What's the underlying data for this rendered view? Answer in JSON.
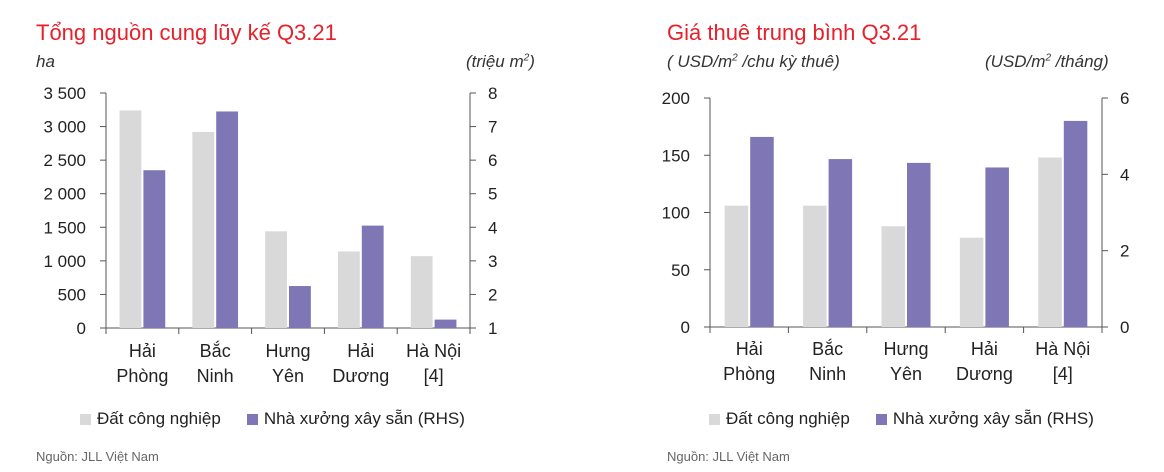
{
  "charts": [
    {
      "title": "Tổng nguồn cung lũy kế Q3.21",
      "unit_left": "ha",
      "unit_right_prefix": "(triệu m",
      "unit_right_sup": "2",
      "unit_right_suffix": ")",
      "legend": [
        "Đất công nghiệp",
        "Nhà xưởng xây sẵn (RHS)"
      ],
      "source": "Nguồn: JLL Việt Nam"
    },
    {
      "title": "Giá thuê trung bình Q3.21",
      "unit_left_prefix": "( USD/m",
      "unit_left_sup": "2",
      "unit_left_suffix": " /chu kỳ thuê)",
      "unit_right_prefix": "(USD/m",
      "unit_right_sup": "2",
      "unit_right_suffix": " /tháng)",
      "legend": [
        "Đất công nghiệp",
        "Nhà xưởng xây sẵn (RHS)"
      ],
      "source": "Nguồn: JLL Việt Nam"
    }
  ],
  "colors": {
    "title": "#e8202a",
    "land": "#d9d9d9",
    "factory": "#7f77b5",
    "axis": "#555555"
  },
  "chart_data": [
    {
      "type": "bar",
      "title": "Tổng nguồn cung lũy kế Q3.21",
      "categories": [
        [
          "Hải",
          "Phòng"
        ],
        [
          "Bắc",
          "Ninh"
        ],
        [
          "Hưng",
          "Yên"
        ],
        [
          "Hải",
          "Dương"
        ],
        [
          "Hà Nội",
          "[4]"
        ]
      ],
      "series": [
        {
          "name": "Đất công nghiệp",
          "axis": "left",
          "values": [
            3240,
            2920,
            1440,
            1140,
            1070
          ]
        },
        {
          "name": "Nhà xưởng xây sẵn (RHS)",
          "axis": "right",
          "values": [
            5.7,
            7.45,
            2.25,
            4.05,
            1.25
          ]
        }
      ],
      "ylabel": "ha",
      "y2label": "(triệu m2)",
      "ylim": [
        0,
        3500
      ],
      "y2lim": [
        1,
        8
      ],
      "yticks": [
        0,
        500,
        1000,
        1500,
        2000,
        2500,
        3000,
        3500
      ],
      "ytick_labels": [
        "0",
        "500",
        "1 000",
        "1 500",
        "2 000",
        "2 500",
        "3 000",
        "3 500"
      ],
      "y2ticks": [
        1,
        2,
        3,
        4,
        5,
        6,
        7,
        8
      ],
      "y2tick_labels": [
        "1",
        "2",
        "3",
        "4",
        "5",
        "6",
        "7",
        "8"
      ],
      "grid": false,
      "legend_position": "bottom"
    },
    {
      "type": "bar",
      "title": "Giá thuê trung bình Q3.21",
      "categories": [
        [
          "Hải",
          "Phòng"
        ],
        [
          "Bắc",
          "Ninh"
        ],
        [
          "Hưng",
          "Yên"
        ],
        [
          "Hải",
          "Dương"
        ],
        [
          "Hà Nội",
          "[4]"
        ]
      ],
      "series": [
        {
          "name": "Đất công nghiệp",
          "axis": "left",
          "values": [
            106,
            106,
            88,
            78,
            148
          ]
        },
        {
          "name": "Nhà xưởng xây sẵn (RHS)",
          "axis": "right",
          "values": [
            4.98,
            4.4,
            4.3,
            4.18,
            5.4
          ]
        }
      ],
      "ylabel": "( USD/m2 /chu kỳ thuê)",
      "y2label": "(USD/m2 /tháng)",
      "ylim": [
        0,
        200
      ],
      "y2lim": [
        0,
        6
      ],
      "yticks": [
        0,
        50,
        100,
        150,
        200
      ],
      "ytick_labels": [
        "0",
        "50",
        "100",
        "150",
        "200"
      ],
      "y2ticks": [
        0,
        2,
        4,
        6
      ],
      "y2tick_labels": [
        "0",
        "2",
        "4",
        "6"
      ],
      "grid": false,
      "legend_position": "bottom"
    }
  ]
}
